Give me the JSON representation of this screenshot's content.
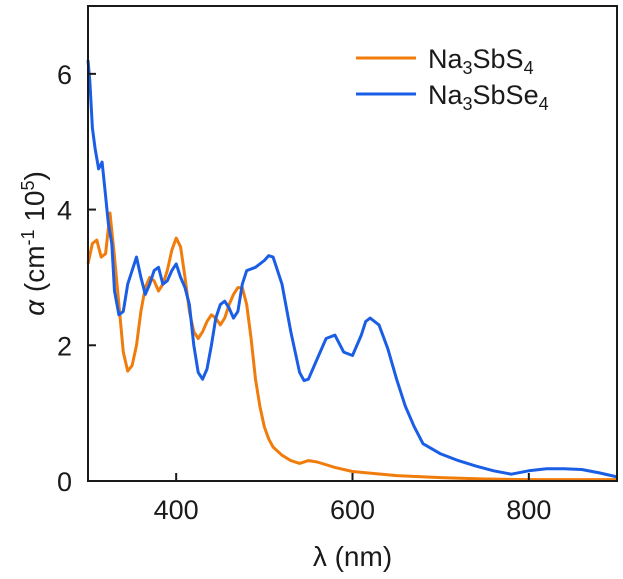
{
  "chart_data": {
    "type": "line",
    "xlabel": "λ (nm)",
    "ylabel": "α (cm-1 10⁵)",
    "ylabel_parts": {
      "symbol": "α",
      "text": " (cm",
      "exp1": "-1",
      "text2": " 10",
      "exp2": "5",
      "close": ")"
    },
    "xlim": [
      300,
      900
    ],
    "ylim": [
      0,
      7
    ],
    "x_ticks": [
      400,
      600,
      800
    ],
    "y_ticks": [
      0,
      2,
      4,
      6
    ],
    "legend_position": "top-right",
    "grid": false,
    "series": [
      {
        "name": "Na3SbS4",
        "label_parts": [
          "Na",
          "3",
          "SbS",
          "4"
        ],
        "color": "#f07c0c",
        "x": [
          300,
          305,
          310,
          315,
          320,
          325,
          330,
          335,
          340,
          345,
          350,
          355,
          360,
          365,
          370,
          375,
          380,
          385,
          390,
          395,
          400,
          405,
          410,
          415,
          420,
          425,
          430,
          435,
          440,
          445,
          450,
          455,
          460,
          465,
          470,
          475,
          480,
          485,
          490,
          495,
          500,
          505,
          510,
          520,
          530,
          540,
          550,
          560,
          580,
          600,
          650,
          700,
          750,
          800,
          850,
          900
        ],
        "y": [
          3.2,
          3.5,
          3.55,
          3.3,
          3.35,
          3.95,
          3.3,
          2.6,
          1.9,
          1.62,
          1.7,
          2.0,
          2.5,
          2.85,
          3.0,
          2.95,
          2.8,
          2.9,
          3.1,
          3.4,
          3.58,
          3.45,
          3.0,
          2.5,
          2.2,
          2.1,
          2.2,
          2.35,
          2.45,
          2.4,
          2.3,
          2.4,
          2.6,
          2.75,
          2.85,
          2.85,
          2.6,
          2.1,
          1.5,
          1.1,
          0.8,
          0.62,
          0.5,
          0.38,
          0.3,
          0.26,
          0.3,
          0.28,
          0.2,
          0.14,
          0.08,
          0.05,
          0.03,
          0.02,
          0.02,
          0.02
        ]
      },
      {
        "name": "Na3SbSe4",
        "label_parts": [
          "Na",
          "3",
          "SbSe",
          "4"
        ],
        "color": "#1a5ee6",
        "x": [
          300,
          302,
          305,
          308,
          312,
          316,
          320,
          323,
          327,
          330,
          335,
          340,
          345,
          350,
          355,
          360,
          365,
          370,
          375,
          380,
          385,
          390,
          395,
          400,
          405,
          410,
          415,
          420,
          425,
          430,
          435,
          440,
          445,
          450,
          455,
          460,
          465,
          470,
          475,
          480,
          490,
          500,
          505,
          510,
          520,
          530,
          540,
          545,
          550,
          560,
          570,
          580,
          590,
          600,
          610,
          615,
          620,
          630,
          640,
          650,
          660,
          670,
          680,
          700,
          720,
          740,
          760,
          780,
          800,
          820,
          840,
          860,
          880,
          900
        ],
        "y": [
          6.2,
          5.9,
          5.2,
          4.9,
          4.6,
          4.7,
          4.2,
          3.8,
          3.5,
          2.8,
          2.45,
          2.5,
          2.9,
          3.1,
          3.3,
          3.0,
          2.75,
          2.9,
          3.1,
          3.15,
          2.9,
          2.95,
          3.1,
          3.2,
          3.0,
          2.85,
          2.6,
          2.0,
          1.6,
          1.5,
          1.65,
          2.0,
          2.4,
          2.6,
          2.65,
          2.55,
          2.4,
          2.5,
          2.9,
          3.1,
          3.15,
          3.25,
          3.32,
          3.3,
          2.9,
          2.2,
          1.6,
          1.48,
          1.5,
          1.8,
          2.1,
          2.15,
          1.9,
          1.85,
          2.15,
          2.35,
          2.4,
          2.3,
          1.95,
          1.5,
          1.1,
          0.8,
          0.55,
          0.4,
          0.3,
          0.22,
          0.15,
          0.1,
          0.15,
          0.18,
          0.18,
          0.17,
          0.12,
          0.06
        ]
      }
    ]
  }
}
